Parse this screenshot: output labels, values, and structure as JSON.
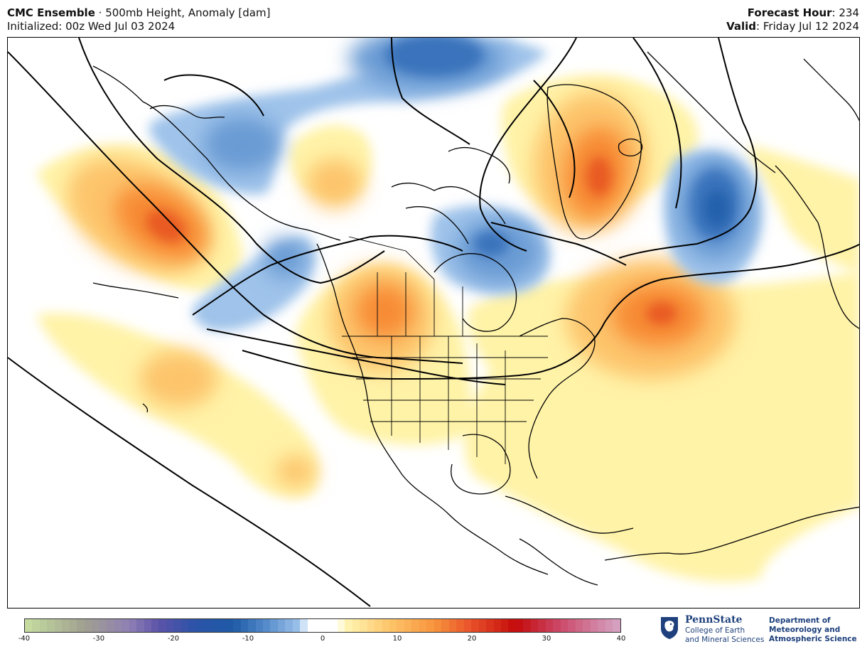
{
  "header": {
    "model": "CMC Ensemble",
    "separator": " · ",
    "product": "500mb Height, Anomaly [dam]",
    "initialized": "Initialized: 00z Wed Jul 03 2024",
    "forecast_hour_label": "Forecast Hour",
    "forecast_hour_value": ": 234",
    "valid_label": "Valid",
    "valid_value": ": Friday Jul 12 2024"
  },
  "colorbar": {
    "min": -40,
    "max": 40,
    "ticks": [
      "-40",
      "-30",
      "-20",
      "-10",
      "0",
      "10",
      "20",
      "30",
      "40"
    ],
    "stops": [
      {
        "v": -40,
        "c": "#c6dea0"
      },
      {
        "v": -32,
        "c": "#a0a090"
      },
      {
        "v": -26,
        "c": "#8f7fb4"
      },
      {
        "v": -22,
        "c": "#5b53a8"
      },
      {
        "v": -17,
        "c": "#2a53a8"
      },
      {
        "v": -12,
        "c": "#1f5aa6"
      },
      {
        "v": -8,
        "c": "#4f86c8"
      },
      {
        "v": -3,
        "c": "#9ec4ec"
      },
      {
        "v": -2,
        "c": "#ffffff"
      },
      {
        "v": 2,
        "c": "#ffffff"
      },
      {
        "v": 3,
        "c": "#fff6b4"
      },
      {
        "v": 9,
        "c": "#fdc56a"
      },
      {
        "v": 15,
        "c": "#f7943c"
      },
      {
        "v": 20,
        "c": "#e8502a"
      },
      {
        "v": 26,
        "c": "#c40a0a"
      },
      {
        "v": 32,
        "c": "#cc4a6a"
      },
      {
        "v": 40,
        "c": "#d6a6c6"
      }
    ]
  },
  "map_palette": {
    "pos_light": "#fff3a8",
    "pos_mid": "#fdc46c",
    "pos_strong": "#f78b36",
    "pos_peak": "#e85a22",
    "neg_light": "#9fc3ea",
    "neg_mid": "#6b9bd4",
    "neg_strong": "#3b73bc",
    "neg_peak": "#2060ac",
    "coast": "#000000",
    "contour": "#000000"
  },
  "logo": {
    "university": "PennState",
    "college_line1": "College of Earth",
    "college_line2": "and Mineral Sciences",
    "dept_line1": "Department of",
    "dept_line2": "Meteorology and",
    "dept_line3": "Atmospheric Science",
    "icon": "nittany-lion-shield-icon"
  }
}
